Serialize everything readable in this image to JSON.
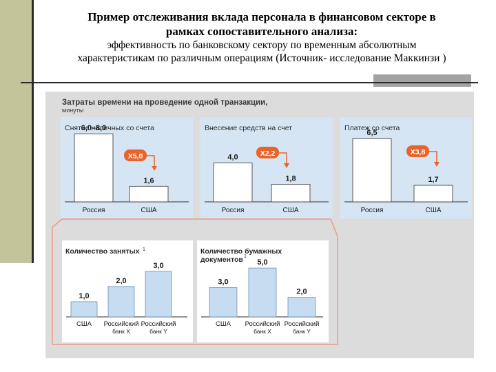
{
  "slide": {
    "title_line1": "Пример отслеживания вклада персонала в финансовом секторе в",
    "title_line2": "рамках сопоставительного анализа:",
    "subtitle_line1": "эффективность по банковскому сектору по временным абсолютным",
    "subtitle_line2": "характеристикам по различным операциям   (Источник- исследование Маккинзи )"
  },
  "figure": {
    "heading_line1": "Затраты времени на проведение одной транзакции,",
    "heading_line2": "минуты"
  },
  "colors": {
    "panel_bg": "#d6e5f3",
    "bar_fill": "#ffffff",
    "bar_fill_blue": "#c5dcf1",
    "badge": "#e8642a",
    "frame": "#eb9a84",
    "sidebar": "#c3c49a"
  },
  "chart_data": [
    {
      "type": "bar",
      "title": "Снятие наличных со счета",
      "categories": [
        "Россия",
        "США"
      ],
      "values": [
        7.0,
        1.6
      ],
      "value_labels": [
        "6,0–8,0",
        "1,6"
      ],
      "ratio_label": "X5,0",
      "ylim": [
        0,
        8.5
      ]
    },
    {
      "type": "bar",
      "title": "Внесение средств на счет",
      "categories": [
        "Россия",
        "США"
      ],
      "values": [
        4.0,
        1.8
      ],
      "value_labels": [
        "4,0",
        "1,8"
      ],
      "ratio_label": "X2,2",
      "ylim": [
        0,
        8.5
      ]
    },
    {
      "type": "bar",
      "title": "Платеж со счета",
      "categories": [
        "Россия",
        "США"
      ],
      "values": [
        6.5,
        1.7
      ],
      "value_labels": [
        "6,5",
        "1,7"
      ],
      "ratio_label": "X3,8",
      "ylim": [
        0,
        8.5
      ]
    },
    {
      "type": "bar",
      "title_line1": "Количество занятых",
      "title_sup": "1",
      "categories": [
        [
          "США"
        ],
        [
          "Российский",
          "банк X"
        ],
        [
          "Российский",
          "банк Y"
        ]
      ],
      "values": [
        1.0,
        2.0,
        3.0
      ],
      "value_labels": [
        "1,0",
        "2,0",
        "3,0"
      ],
      "ylim": [
        0,
        3.4
      ]
    },
    {
      "type": "bar",
      "title_line1": "Количество бумажных",
      "title_line2": "документов",
      "title_sup": "1",
      "categories": [
        [
          "США"
        ],
        [
          "Российский",
          "банк X"
        ],
        [
          "Российский",
          "банк Y"
        ]
      ],
      "values": [
        3.0,
        5.0,
        2.0
      ],
      "value_labels": [
        "3,0",
        "5,0",
        "2,0"
      ],
      "ylim": [
        0,
        5.5
      ]
    }
  ]
}
